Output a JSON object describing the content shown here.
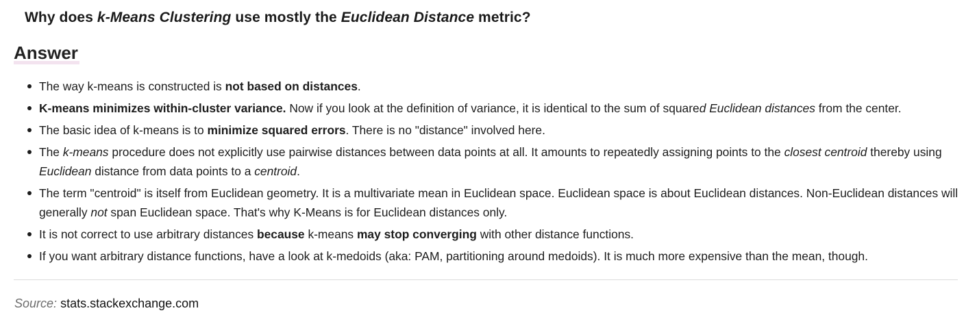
{
  "question": {
    "part1": "Why does ",
    "part2": "k-Means Clustering",
    "part3": " use mostly the ",
    "part4": "Euclidean Distance",
    "part5": " metric?"
  },
  "answer_heading": "Answer",
  "answers": [
    {
      "s1": "The way k-means is constructed is ",
      "s2": "not based on distances",
      "s3": "."
    },
    {
      "s1": "K-means minimizes within-cluster variance.",
      "s2": " Now if you look at the definition of variance, it is identical to the sum of square",
      "s3": "d Euclidean distances",
      "s4": " from the center."
    },
    {
      "s1": "The basic idea of k-means is to ",
      "s2": "minimize squared errors",
      "s3": ". There is no \"distance\" involved here."
    },
    {
      "s1": "The ",
      "s2": "k-means",
      "s3": " procedure does not explicitly use pairwise distances between data points at all. It amounts to repeatedly assigning points to the ",
      "s4": "closest centroid",
      "s5": " thereby using ",
      "s6": "Euclidean",
      "s7": " distance from data points to a ",
      "s8": "centroid",
      "s9": "."
    },
    {
      "s1": "The term \"centroid\" is itself from Euclidean geometry. It is a multivariate mean in Euclidean space. Euclidean space is about Euclidean distances. Non-Euclidean distances will generally ",
      "s2": "not",
      "s3": " span Euclidean space. That's why K-Means is for Euclidean distances only."
    },
    {
      "s1": "It is not correct to use arbitrary distances ",
      "s2": "because",
      "s3": " k-means ",
      "s4": "may stop converging",
      "s5": " with other distance functions."
    },
    {
      "s1": "If you want arbitrary distance functions, have a look at k-medoids (aka: PAM, partitioning around medoids). It is much more expensive than the mean, though."
    }
  ],
  "source": {
    "label": "Source:",
    "value": "stats.stackexchange.com"
  }
}
